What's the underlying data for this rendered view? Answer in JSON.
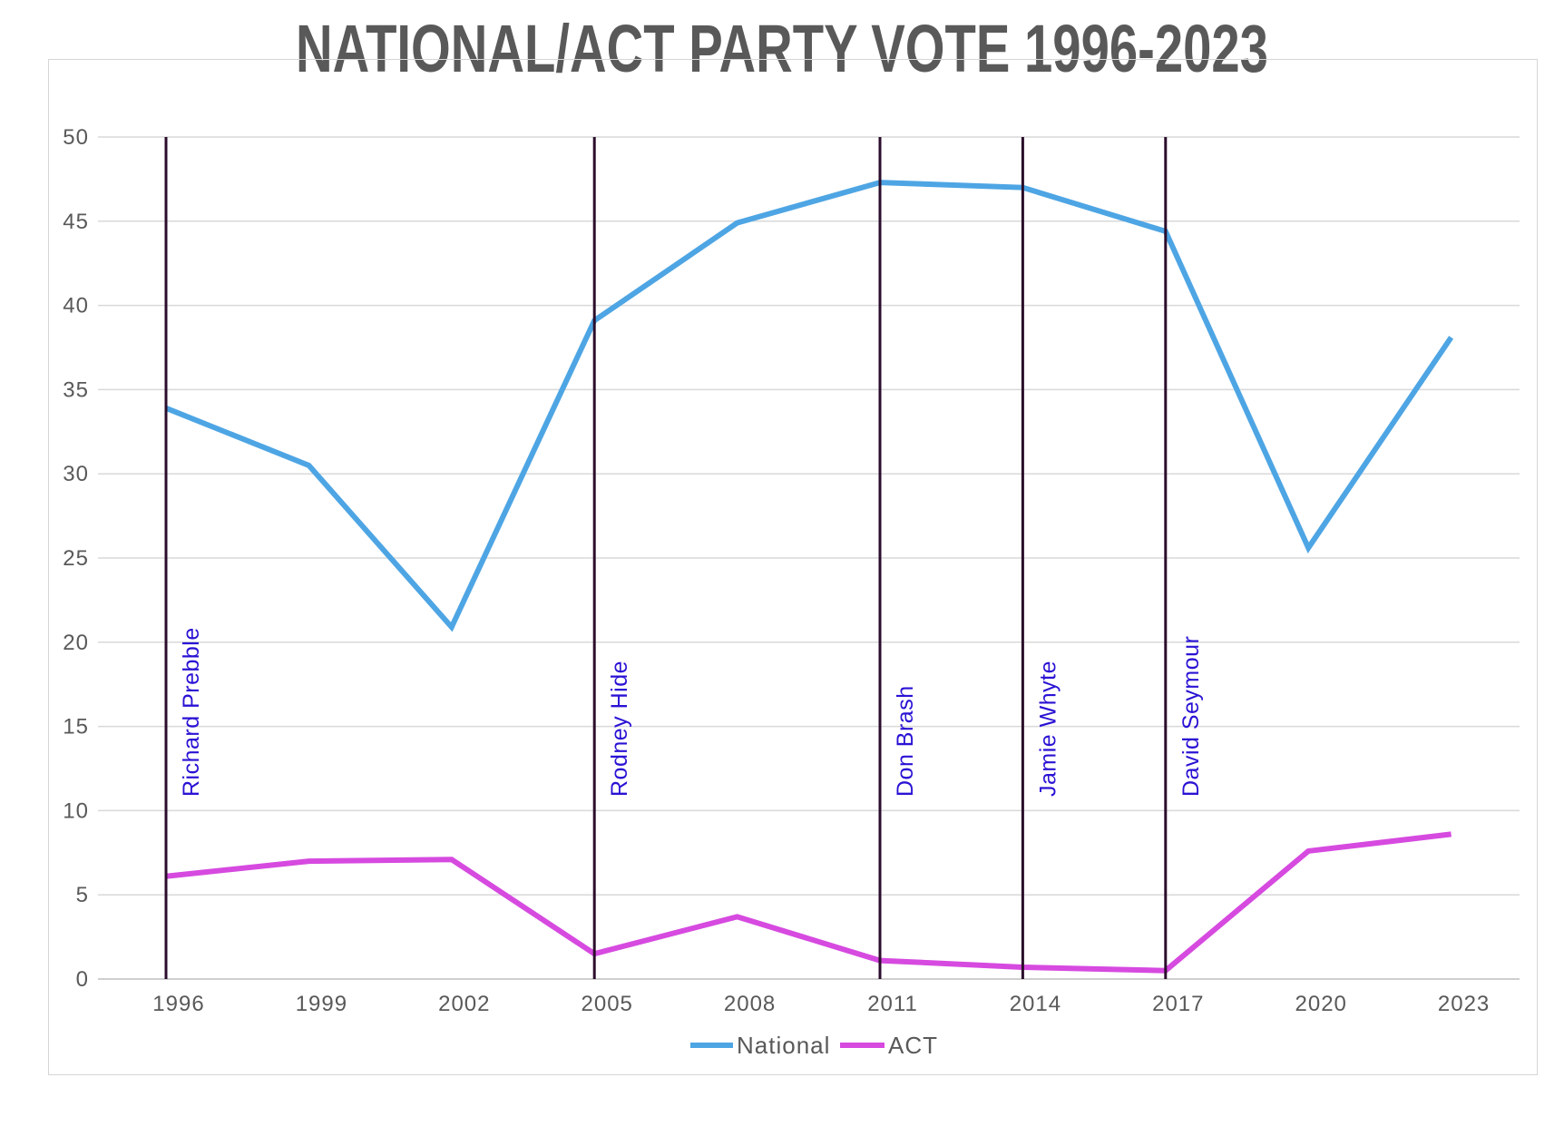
{
  "title": "NATIONAL/ACT PARTY VOTE 1996-2023",
  "colors": {
    "national": "#4ea5e4",
    "act": "#d64ae0",
    "leader_line": "#2b0d2b",
    "leader_text": "#2a12d4",
    "grid": "#d9d9d9",
    "title": "#595959"
  },
  "chart_data": {
    "type": "line",
    "title": "NATIONAL/ACT PARTY VOTE 1996-2023",
    "x": [
      "1996",
      "1999",
      "2002",
      "2005",
      "2008",
      "2011",
      "2014",
      "2017",
      "2020",
      "2023"
    ],
    "y_ticks": [
      "0",
      "5",
      "10",
      "15",
      "20",
      "25",
      "30",
      "35",
      "40",
      "45",
      "50"
    ],
    "ylim": [
      0,
      50
    ],
    "grid": "horizontal",
    "legend_position": "bottom",
    "series": [
      {
        "name": "National",
        "color": "#4ea5e4",
        "values": [
          33.9,
          30.5,
          20.9,
          39.1,
          44.9,
          47.3,
          47.0,
          44.4,
          25.6,
          38.1
        ]
      },
      {
        "name": "ACT",
        "color": "#d64ae0",
        "values": [
          6.1,
          7.0,
          7.1,
          1.5,
          3.7,
          1.1,
          0.7,
          0.5,
          7.6,
          8.6
        ]
      }
    ],
    "annotations": [
      {
        "x": "1996",
        "label": "Richard Prebble"
      },
      {
        "x": "2005",
        "label": "Rodney Hide"
      },
      {
        "x": "2011",
        "label": "Don Brash"
      },
      {
        "x": "2014",
        "label": "Jamie Whyte"
      },
      {
        "x": "2017",
        "label": "David Seymour"
      }
    ]
  }
}
